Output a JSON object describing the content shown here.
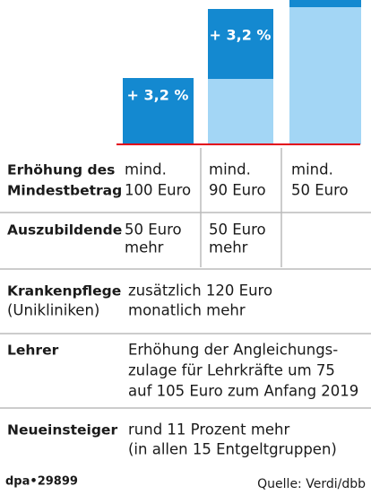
{
  "bars": [
    {
      "label": "+ 3,2 %"
    },
    {
      "label": "+ 3,2 %"
    }
  ],
  "rows": [
    {
      "heading": [
        "Erhöhung des",
        "Mindestbetrag"
      ],
      "cells": [
        [
          "mind.",
          "100 Euro"
        ],
        [
          "mind.",
          "90  Euro"
        ],
        [
          "mind.",
          "50 Euro"
        ]
      ]
    },
    {
      "heading": [
        "Auszubildende"
      ],
      "cells": [
        [
          "50 Euro",
          "mehr"
        ],
        [
          "50 Euro",
          "mehr"
        ]
      ]
    },
    {
      "heading": [
        "Krankenpflege"
      ],
      "subheading": "(Unikliniken)",
      "text": [
        "zusätzlich 120 Euro",
        "monatlich mehr"
      ]
    },
    {
      "heading": [
        "Lehrer"
      ],
      "text": [
        "Erhöhung der Angleichungs-",
        "zulage für Lehrkräfte um 75",
        "auf 105 Euro zum Anfang 2019"
      ]
    },
    {
      "heading": [
        "Neueinsteiger"
      ],
      "text": [
        "rund 11 Prozent mehr",
        "(in allen 15 Entgeltgruppen)"
      ]
    }
  ],
  "footer": {
    "id": "dpa•29899",
    "source": "Quelle: Verdi/dbb"
  }
}
